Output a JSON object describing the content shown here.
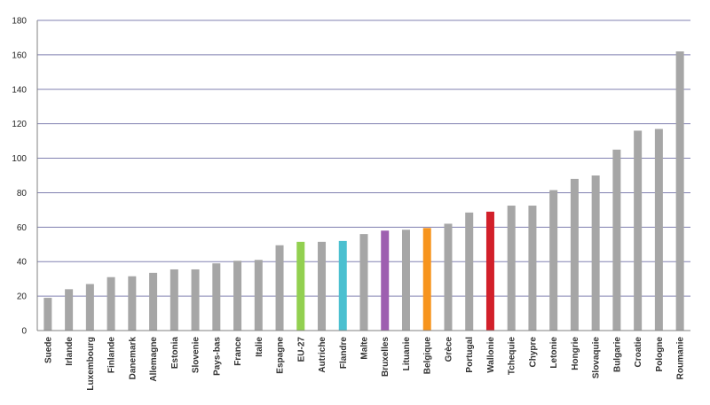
{
  "chart_data": {
    "type": "bar",
    "title": "",
    "xlabel": "",
    "ylabel": "",
    "ylim": [
      0,
      180
    ],
    "yticks": [
      0,
      20,
      40,
      60,
      80,
      100,
      120,
      140,
      160,
      180
    ],
    "grid": true,
    "legend": "none",
    "default_color": "#a6a6a6",
    "gridline_color": "#8080b0",
    "categories": [
      "Suede",
      "Irlande",
      "Luxembourg",
      "Finlande",
      "Danemark",
      "Allemagne",
      "Estonia",
      "Slovenie",
      "Pays-bas",
      "France",
      "Italie",
      "Espagne",
      "EU-27",
      "Autriche",
      "Flandre",
      "Malte",
      "Bruxelles",
      "Lituanie",
      "Belgique",
      "Grèce",
      "Portugal",
      "Wallonie",
      "Tchequie",
      "Chypre",
      "Letonie",
      "Hongrie",
      "Slovaquie",
      "Bulgarie",
      "Croatie",
      "Pologne",
      "Roumanie"
    ],
    "values": [
      19,
      24,
      27,
      31,
      31.5,
      33.5,
      35.5,
      35.5,
      39,
      40.5,
      41,
      49.5,
      51.5,
      51.5,
      52,
      56,
      58,
      58.5,
      59.5,
      62,
      68.5,
      69,
      72.5,
      72.5,
      81.5,
      88,
      90,
      105,
      116,
      117,
      162
    ],
    "highlights": {
      "EU-27": "#92d050",
      "Flandre": "#4bc0d0",
      "Bruxelles": "#9e5fb0",
      "Belgique": "#f7941d",
      "Wallonie": "#d2202a"
    }
  }
}
